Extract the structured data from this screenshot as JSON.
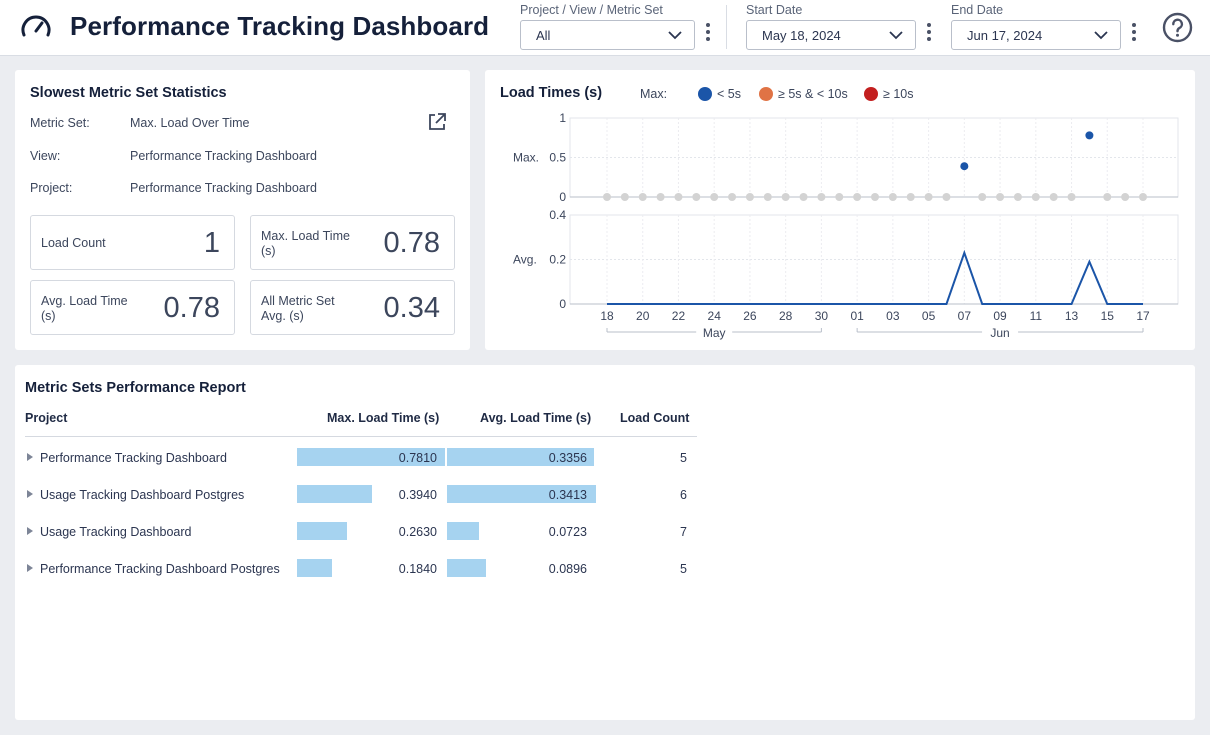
{
  "header": {
    "title": "Performance Tracking Dashboard",
    "filters": [
      {
        "label": "Project / View / Metric Set",
        "value": "All"
      },
      {
        "label": "Start Date",
        "value": "May 18, 2024"
      },
      {
        "label": "End Date",
        "value": "Jun 17, 2024"
      }
    ]
  },
  "stats_card": {
    "title": "Slowest Metric Set Statistics",
    "fields": [
      {
        "key": "Metric Set:",
        "value": "Max. Load Over Time"
      },
      {
        "key": "View:",
        "value": "Performance Tracking Dashboard"
      },
      {
        "key": "Project:",
        "value": "Performance Tracking Dashboard"
      }
    ],
    "kpis": [
      {
        "label": "Load Count",
        "value": "1"
      },
      {
        "label": "Max. Load Time (s)",
        "value": "0.78"
      },
      {
        "label": "Avg. Load Time (s)",
        "value": "0.78"
      },
      {
        "label": "All Metric Set Avg. (s)",
        "value": "0.34"
      }
    ]
  },
  "chart_data": {
    "type": "line",
    "title": "Load Times (s)",
    "legend": {
      "title": "Max:",
      "items": [
        {
          "label": "< 5s",
          "color": "#1b55a8"
        },
        {
          "label": "≥ 5s & < 10s",
          "color": "#e07345"
        },
        {
          "label": "≥ 10s",
          "color": "#c31f1f"
        }
      ]
    },
    "x": [
      "May 18",
      "May 19",
      "May 20",
      "May 21",
      "May 22",
      "May 23",
      "May 24",
      "May 25",
      "May 26",
      "May 27",
      "May 28",
      "May 29",
      "May 30",
      "May 31",
      "Jun 01",
      "Jun 02",
      "Jun 03",
      "Jun 04",
      "Jun 05",
      "Jun 06",
      "Jun 07",
      "Jun 08",
      "Jun 09",
      "Jun 10",
      "Jun 11",
      "Jun 12",
      "Jun 13",
      "Jun 14",
      "Jun 15",
      "Jun 16",
      "Jun 17"
    ],
    "x_tick_labels": [
      "18",
      "20",
      "22",
      "24",
      "26",
      "28",
      "30",
      "01",
      "03",
      "05",
      "07",
      "09",
      "11",
      "13",
      "15",
      "17"
    ],
    "x_group_labels": [
      "May",
      "Jun"
    ],
    "panels": [
      {
        "name": "Max.",
        "kind": "scatter",
        "ylim": [
          0,
          1
        ],
        "yticks": [
          "1",
          "0.5",
          "0"
        ],
        "values": [
          0,
          0,
          0,
          0,
          0,
          0,
          0,
          0,
          0,
          0,
          0,
          0,
          0,
          0,
          0,
          0,
          0,
          0,
          0,
          0,
          0.39,
          0,
          0,
          0,
          0,
          0,
          0,
          0.78,
          0,
          0,
          0
        ]
      },
      {
        "name": "Avg.",
        "kind": "line",
        "ylim": [
          0,
          0.4
        ],
        "yticks": [
          "0.4",
          "0.2",
          "0"
        ],
        "values": [
          0,
          0,
          0,
          0,
          0,
          0,
          0,
          0,
          0,
          0,
          0,
          0,
          0,
          0,
          0,
          0,
          0,
          0,
          0,
          0,
          0.23,
          0,
          0,
          0,
          0,
          0,
          0,
          0.19,
          0,
          0,
          0
        ]
      }
    ],
    "colors": {
      "point": "#1b55a8",
      "empty_point": "#d3d3d3",
      "line": "#1b55a8"
    }
  },
  "report": {
    "title": "Metric Sets Performance Report",
    "columns": [
      "Project",
      "Max. Load Time (s)",
      "Avg. Load Time (s)",
      "Load Count"
    ],
    "max_scale": 0.781,
    "avg_scale": 0.3413,
    "rows": [
      {
        "project": "Performance Tracking Dashboard",
        "max": 0.781,
        "max_text": "0.7810",
        "avg": 0.3356,
        "avg_text": "0.3356",
        "count": "5"
      },
      {
        "project": "Usage Tracking Dashboard Postgres",
        "max": 0.394,
        "max_text": "0.3940",
        "avg": 0.3413,
        "avg_text": "0.3413",
        "count": "6"
      },
      {
        "project": "Usage Tracking Dashboard",
        "max": 0.263,
        "max_text": "0.2630",
        "avg": 0.0723,
        "avg_text": "0.0723",
        "count": "7"
      },
      {
        "project": "Performance Tracking Dashboard Postgres",
        "max": 0.184,
        "max_text": "0.1840",
        "avg": 0.0896,
        "avg_text": "0.0896",
        "count": "5"
      }
    ]
  }
}
